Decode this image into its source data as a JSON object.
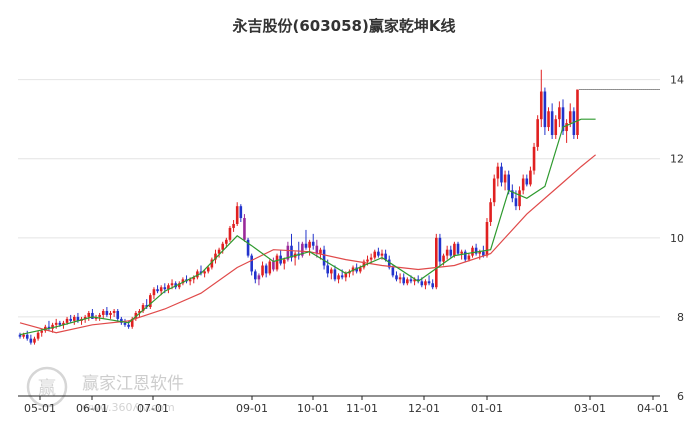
{
  "chart_data": {
    "type": "candlestick",
    "title": "永吉股份(603058)赢家乾坤K线",
    "ylim": [
      6,
      14.8
    ],
    "y_ticks": [
      6,
      8,
      10,
      12,
      14
    ],
    "x_tick_labels": [
      "05-01",
      "06-01",
      "07-01",
      "09-01",
      "10-01",
      "11-01",
      "12-01",
      "01-01",
      "03-01",
      "04-01"
    ],
    "grid": true,
    "last_price": 13.75,
    "colors": {
      "up": "#e02020",
      "down": "#2233cc",
      "special": "#9a2a9a",
      "ma_short": "#2e9a2e",
      "ma_long": "#e04a4a",
      "grid": "#e4e4e4",
      "axis": "#222222"
    },
    "series": [
      {
        "kind": "candles",
        "values": [
          [
            7.55,
            7.6,
            7.45,
            7.5
          ],
          [
            7.5,
            7.6,
            7.45,
            7.55
          ],
          [
            7.55,
            7.65,
            7.4,
            7.45
          ],
          [
            7.45,
            7.55,
            7.3,
            7.35
          ],
          [
            7.35,
            7.5,
            7.3,
            7.45
          ],
          [
            7.45,
            7.65,
            7.4,
            7.6
          ],
          [
            7.6,
            7.7,
            7.5,
            7.65
          ],
          [
            7.65,
            7.8,
            7.6,
            7.75
          ],
          [
            7.75,
            7.9,
            7.65,
            7.7
          ],
          [
            7.7,
            7.85,
            7.6,
            7.8
          ],
          [
            7.8,
            7.95,
            7.7,
            7.85
          ],
          [
            7.85,
            7.9,
            7.75,
            7.8
          ],
          [
            7.8,
            7.9,
            7.7,
            7.85
          ],
          [
            7.85,
            8.0,
            7.8,
            7.95
          ],
          [
            7.95,
            8.05,
            7.85,
            7.9
          ],
          [
            7.9,
            8.05,
            7.8,
            8.0
          ],
          [
            8.0,
            8.1,
            7.85,
            7.9
          ],
          [
            7.9,
            8.0,
            7.8,
            7.95
          ],
          [
            7.95,
            8.05,
            7.85,
            8.0
          ],
          [
            8.0,
            8.15,
            7.9,
            8.1
          ],
          [
            8.1,
            8.2,
            7.95,
            7.95
          ],
          [
            7.95,
            8.05,
            7.9,
            8.0
          ],
          [
            8.0,
            8.1,
            7.9,
            8.05
          ],
          [
            8.05,
            8.2,
            7.95,
            8.15
          ],
          [
            8.15,
            8.25,
            8.0,
            8.05
          ],
          [
            8.05,
            8.15,
            7.95,
            8.1
          ],
          [
            8.1,
            8.2,
            8.0,
            8.15
          ],
          [
            8.15,
            8.2,
            7.9,
            7.95
          ],
          [
            7.95,
            8.0,
            7.8,
            7.85
          ],
          [
            7.85,
            7.95,
            7.75,
            7.8
          ],
          [
            7.8,
            7.9,
            7.7,
            7.75
          ],
          [
            7.75,
            8.0,
            7.7,
            7.95
          ],
          [
            7.95,
            8.15,
            7.9,
            8.1
          ],
          [
            8.1,
            8.2,
            8.0,
            8.15
          ],
          [
            8.15,
            8.35,
            8.1,
            8.3
          ],
          [
            8.3,
            8.45,
            8.2,
            8.25
          ],
          [
            8.25,
            8.6,
            8.2,
            8.55
          ],
          [
            8.55,
            8.75,
            8.45,
            8.7
          ],
          [
            8.7,
            8.8,
            8.6,
            8.65
          ],
          [
            8.65,
            8.8,
            8.55,
            8.75
          ],
          [
            8.75,
            8.85,
            8.6,
            8.7
          ],
          [
            8.7,
            8.85,
            8.6,
            8.8
          ],
          [
            8.8,
            8.95,
            8.7,
            8.85
          ],
          [
            8.85,
            8.9,
            8.7,
            8.75
          ],
          [
            8.75,
            8.9,
            8.7,
            8.85
          ],
          [
            8.85,
            9.0,
            8.8,
            8.95
          ],
          [
            8.95,
            9.05,
            8.85,
            8.9
          ],
          [
            8.9,
            9.0,
            8.8,
            8.95
          ],
          [
            8.95,
            9.05,
            8.85,
            9.0
          ],
          [
            9.0,
            9.2,
            8.95,
            9.15
          ],
          [
            9.15,
            9.3,
            9.05,
            9.1
          ],
          [
            9.1,
            9.2,
            9.0,
            9.15
          ],
          [
            9.15,
            9.3,
            9.1,
            9.25
          ],
          [
            9.25,
            9.5,
            9.2,
            9.45
          ],
          [
            9.45,
            9.7,
            9.35,
            9.6
          ],
          [
            9.6,
            9.75,
            9.5,
            9.7
          ],
          [
            9.7,
            9.9,
            9.6,
            9.85
          ],
          [
            9.85,
            10.0,
            9.75,
            9.95
          ],
          [
            9.95,
            10.3,
            9.9,
            10.25
          ],
          [
            10.25,
            10.45,
            10.15,
            10.35
          ],
          [
            10.35,
            10.9,
            10.3,
            10.8
          ],
          [
            10.8,
            10.85,
            10.4,
            10.5
          ],
          [
            10.5,
            10.6,
            9.9,
            9.95
          ],
          [
            9.95,
            10.0,
            9.5,
            9.55
          ],
          [
            9.55,
            9.6,
            9.05,
            9.15
          ],
          [
            9.15,
            9.2,
            8.85,
            8.95
          ],
          [
            8.95,
            9.1,
            8.8,
            9.05
          ],
          [
            9.05,
            9.4,
            9.0,
            9.3
          ],
          [
            9.3,
            9.35,
            9.0,
            9.1
          ],
          [
            9.1,
            9.45,
            9.05,
            9.4
          ],
          [
            9.4,
            9.5,
            9.15,
            9.2
          ],
          [
            9.2,
            9.6,
            9.15,
            9.55
          ],
          [
            9.55,
            9.7,
            9.3,
            9.35
          ],
          [
            9.35,
            9.5,
            9.2,
            9.45
          ],
          [
            9.45,
            9.9,
            9.4,
            9.8
          ],
          [
            9.8,
            10.1,
            9.4,
            9.5
          ],
          [
            9.5,
            9.65,
            9.3,
            9.6
          ],
          [
            9.6,
            9.9,
            9.45,
            9.55
          ],
          [
            9.55,
            9.9,
            9.5,
            9.85
          ],
          [
            9.85,
            10.2,
            9.7,
            9.75
          ],
          [
            9.75,
            9.95,
            9.55,
            9.9
          ],
          [
            9.9,
            10.1,
            9.7,
            9.8
          ],
          [
            9.8,
            9.95,
            9.5,
            9.6
          ],
          [
            9.6,
            9.75,
            9.45,
            9.7
          ],
          [
            9.7,
            9.8,
            9.2,
            9.3
          ],
          [
            9.3,
            9.45,
            9.0,
            9.1
          ],
          [
            9.1,
            9.25,
            8.95,
            9.2
          ],
          [
            9.2,
            9.3,
            8.9,
            8.95
          ],
          [
            8.95,
            9.1,
            8.85,
            9.05
          ],
          [
            9.05,
            9.2,
            8.95,
            9.0
          ],
          [
            9.0,
            9.15,
            8.9,
            9.1
          ],
          [
            9.1,
            9.2,
            9.0,
            9.15
          ],
          [
            9.15,
            9.3,
            9.05,
            9.25
          ],
          [
            9.25,
            9.35,
            9.1,
            9.15
          ],
          [
            9.15,
            9.3,
            9.1,
            9.25
          ],
          [
            9.25,
            9.45,
            9.2,
            9.4
          ],
          [
            9.4,
            9.55,
            9.3,
            9.45
          ],
          [
            9.45,
            9.6,
            9.35,
            9.5
          ],
          [
            9.5,
            9.7,
            9.45,
            9.65
          ],
          [
            9.65,
            9.75,
            9.5,
            9.55
          ],
          [
            9.55,
            9.7,
            9.45,
            9.6
          ],
          [
            9.6,
            9.7,
            9.4,
            9.45
          ],
          [
            9.45,
            9.55,
            9.2,
            9.25
          ],
          [
            9.25,
            9.3,
            9.0,
            9.05
          ],
          [
            9.05,
            9.15,
            8.9,
            8.95
          ],
          [
            8.95,
            9.1,
            8.85,
            9.0
          ],
          [
            9.0,
            9.1,
            8.8,
            8.85
          ],
          [
            8.85,
            9.0,
            8.8,
            8.95
          ],
          [
            8.95,
            9.05,
            8.85,
            8.9
          ],
          [
            8.9,
            9.0,
            8.8,
            8.95
          ],
          [
            8.95,
            9.05,
            8.85,
            8.9
          ],
          [
            8.9,
            9.0,
            8.75,
            8.8
          ],
          [
            8.8,
            8.95,
            8.7,
            8.9
          ],
          [
            8.9,
            9.05,
            8.8,
            8.85
          ],
          [
            8.85,
            8.95,
            8.7,
            8.75
          ],
          [
            8.75,
            10.1,
            8.7,
            10.0
          ],
          [
            10.0,
            10.1,
            9.3,
            9.4
          ],
          [
            9.4,
            9.6,
            9.3,
            9.55
          ],
          [
            9.55,
            9.8,
            9.45,
            9.7
          ],
          [
            9.7,
            9.8,
            9.5,
            9.55
          ],
          [
            9.55,
            9.9,
            9.5,
            9.85
          ],
          [
            9.85,
            9.9,
            9.55,
            9.6
          ],
          [
            9.6,
            9.7,
            9.45,
            9.65
          ],
          [
            9.65,
            9.7,
            9.4,
            9.45
          ],
          [
            9.45,
            9.6,
            9.4,
            9.55
          ],
          [
            9.55,
            9.8,
            9.5,
            9.75
          ],
          [
            9.75,
            9.85,
            9.55,
            9.6
          ],
          [
            9.6,
            9.7,
            9.45,
            9.65
          ],
          [
            9.65,
            9.8,
            9.5,
            9.55
          ],
          [
            9.55,
            10.5,
            9.5,
            10.4
          ],
          [
            10.4,
            11.0,
            10.3,
            10.9
          ],
          [
            10.9,
            11.6,
            10.8,
            11.5
          ],
          [
            11.5,
            11.9,
            11.3,
            11.8
          ],
          [
            11.8,
            11.9,
            11.3,
            11.4
          ],
          [
            11.4,
            11.7,
            11.2,
            11.6
          ],
          [
            11.6,
            11.7,
            11.1,
            11.2
          ],
          [
            11.2,
            11.35,
            10.9,
            11.0
          ],
          [
            11.0,
            11.2,
            10.7,
            10.8
          ],
          [
            10.8,
            11.3,
            10.7,
            11.2
          ],
          [
            11.2,
            11.6,
            11.1,
            11.5
          ],
          [
            11.5,
            11.6,
            11.3,
            11.35
          ],
          [
            11.35,
            11.8,
            11.3,
            11.7
          ],
          [
            11.7,
            12.4,
            11.6,
            12.3
          ],
          [
            12.3,
            13.1,
            12.2,
            13.0
          ],
          [
            13.0,
            14.25,
            12.8,
            13.7
          ],
          [
            13.7,
            13.8,
            12.6,
            12.8
          ],
          [
            12.8,
            13.3,
            12.7,
            13.2
          ],
          [
            13.2,
            13.4,
            12.5,
            12.6
          ],
          [
            12.6,
            13.1,
            12.5,
            13.0
          ],
          [
            13.0,
            13.45,
            12.8,
            13.3
          ],
          [
            13.3,
            13.5,
            12.6,
            12.7
          ],
          [
            12.7,
            13.0,
            12.4,
            12.9
          ],
          [
            12.9,
            13.4,
            12.8,
            13.2
          ],
          [
            13.2,
            13.3,
            12.5,
            12.6
          ],
          [
            12.6,
            13.75,
            12.5,
            13.75
          ]
        ],
        "special_purple_indices": [
          62,
          66,
          70,
          74,
          78,
          82
        ]
      },
      {
        "kind": "ma",
        "name": "",
        "color": "#2e9a2e",
        "x": [
          0,
          10,
          20,
          30,
          40,
          50,
          60,
          64,
          70,
          80,
          90,
          100,
          110,
          120,
          130,
          135,
          140,
          145,
          150,
          155,
          159
        ],
        "values": [
          7.55,
          7.75,
          8.0,
          7.85,
          8.65,
          9.1,
          10.05,
          9.8,
          9.4,
          9.65,
          9.1,
          9.5,
          8.9,
          9.55,
          9.7,
          11.2,
          11.0,
          11.3,
          12.8,
          13.0,
          13.0
        ]
      },
      {
        "kind": "ma",
        "name": "",
        "color": "#e04a4a",
        "x": [
          0,
          10,
          20,
          30,
          40,
          50,
          60,
          70,
          80,
          90,
          100,
          110,
          120,
          130,
          140,
          150,
          155,
          159
        ],
        "values": [
          7.85,
          7.6,
          7.8,
          7.9,
          8.2,
          8.6,
          9.25,
          9.7,
          9.65,
          9.45,
          9.3,
          9.2,
          9.3,
          9.6,
          10.6,
          11.4,
          11.8,
          12.1
        ]
      }
    ]
  },
  "watermark": {
    "logo_text": "赢",
    "brand": "赢家江恩软件",
    "url": "www.360ʎᴉv.com"
  }
}
